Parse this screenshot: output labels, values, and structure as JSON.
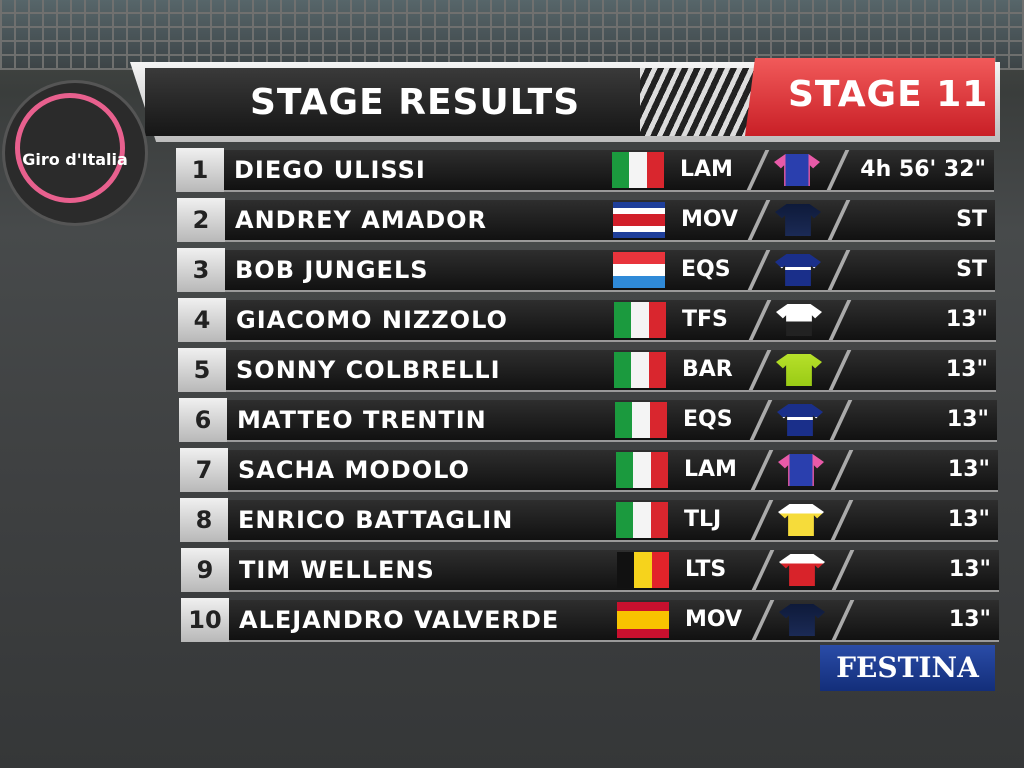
{
  "logo": {
    "text": "Giro d'Italia"
  },
  "header": {
    "title": "STAGE RESULTS",
    "stage": "STAGE 11"
  },
  "table": {
    "rows": [
      {
        "rank": 1,
        "name": "DIEGO ULISSI",
        "team": "LAM",
        "time": "4h 56' 32\""
      },
      {
        "rank": 2,
        "name": "ANDREY AMADOR",
        "team": "MOV",
        "time": "ST"
      },
      {
        "rank": 3,
        "name": "BOB JUNGELS",
        "team": "EQS",
        "time": "ST"
      },
      {
        "rank": 4,
        "name": "GIACOMO NIZZOLO",
        "team": "TFS",
        "time": "13\""
      },
      {
        "rank": 5,
        "name": "SONNY COLBRELLI",
        "team": "BAR",
        "time": "13\""
      },
      {
        "rank": 6,
        "name": "MATTEO TRENTIN",
        "team": "EQS",
        "time": "13\""
      },
      {
        "rank": 7,
        "name": "SACHA MODOLO",
        "team": "LAM",
        "time": "13\""
      },
      {
        "rank": 8,
        "name": "ENRICO BATTAGLIN",
        "team": "TLJ",
        "time": "13\""
      },
      {
        "rank": 9,
        "name": "TIM WELLENS",
        "team": "LTS",
        "time": "13\""
      },
      {
        "rank": 10,
        "name": "ALEJANDRO VALVERDE",
        "team": "MOV",
        "time": "13\""
      }
    ]
  },
  "sponsor": {
    "text": "FESTINA"
  }
}
